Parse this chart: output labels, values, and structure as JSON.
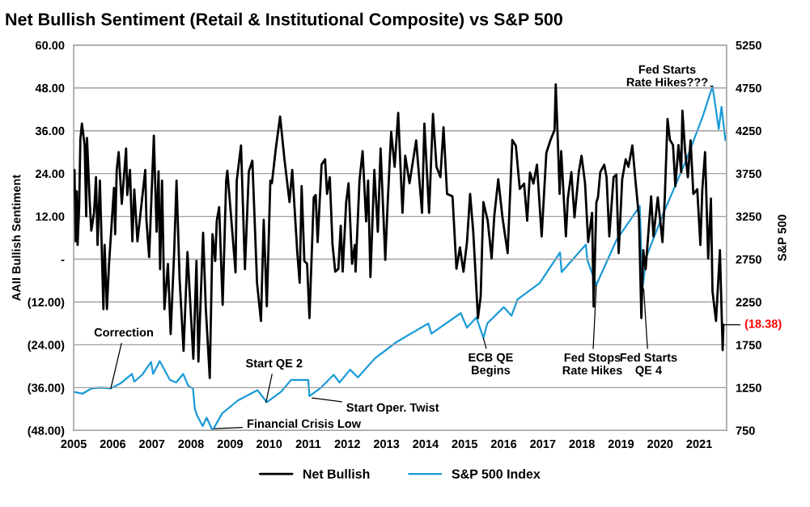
{
  "chart_data": {
    "type": "line",
    "title": "Net Bullish Sentiment (Retail & Institutional Composite) vs S&P 500",
    "ylabel": "AAII Bullish Sentiment",
    "y2label": "S&P 500",
    "xlim": [
      2005,
      2021.7
    ],
    "xticks": [
      2005,
      2006,
      2007,
      2008,
      2009,
      2010,
      2011,
      2012,
      2013,
      2014,
      2015,
      2016,
      2017,
      2018,
      2019,
      2020,
      2021
    ],
    "ylim": [
      -48,
      60
    ],
    "yticks": [
      {
        "value": 60,
        "label": "60.00"
      },
      {
        "value": 48,
        "label": "48.00"
      },
      {
        "value": 36,
        "label": "36.00"
      },
      {
        "value": 24,
        "label": "24.00"
      },
      {
        "value": 12,
        "label": "12.00"
      },
      {
        "value": 0,
        "label": "-"
      },
      {
        "value": -12,
        "label": "(12.00)"
      },
      {
        "value": -24,
        "label": "(24.00)"
      },
      {
        "value": -36,
        "label": "(36.00)"
      },
      {
        "value": -48,
        "label": "(48.00)"
      }
    ],
    "y2lim": [
      750,
      5250
    ],
    "y2ticks": [
      750,
      1250,
      1750,
      2250,
      2750,
      3250,
      3750,
      4250,
      4750,
      5250
    ],
    "grid": "y",
    "legend": "bottom",
    "series": [
      {
        "name": "Net Bullish",
        "color": "#000000",
        "x": [
          2005.0,
          2005.02,
          2005.05,
          2005.08,
          2005.1,
          2005.14,
          2005.17,
          2005.21,
          2005.28,
          2005.32,
          2005.34,
          2005.41,
          2005.45,
          2005.52,
          2005.57,
          2005.61,
          2005.67,
          2005.76,
          2005.79,
          2005.85,
          2005.9,
          2006.03,
          2006.06,
          2006.1,
          2006.15,
          2006.23,
          2006.34,
          2006.37,
          2006.44,
          2006.5,
          2006.55,
          2006.63,
          2006.83,
          2006.86,
          2006.93,
          2007.05,
          2007.12,
          2007.17,
          2007.21,
          2007.26,
          2007.32,
          2007.41,
          2007.48,
          2007.57,
          2007.63,
          2007.71,
          2007.81,
          2007.91,
          2008.06,
          2008.14,
          2008.19,
          2008.31,
          2008.38,
          2008.48,
          2008.55,
          2008.62,
          2008.66,
          2008.72,
          2008.81,
          2008.9,
          2008.93,
          2009.0,
          2009.14,
          2009.17,
          2009.28,
          2009.38,
          2009.48,
          2009.57,
          2009.69,
          2009.79,
          2009.86,
          2009.94,
          2010.03,
          2010.07,
          2010.17,
          2010.28,
          2010.39,
          2010.52,
          2010.59,
          2010.72,
          2010.78,
          2010.83,
          2010.9,
          2010.97,
          2011.03,
          2011.14,
          2011.19,
          2011.24,
          2011.34,
          2011.43,
          2011.48,
          2011.55,
          2011.62,
          2011.69,
          2011.77,
          2011.83,
          2011.88,
          2011.97,
          2012.03,
          2012.12,
          2012.19,
          2012.21,
          2012.31,
          2012.39,
          2012.48,
          2012.53,
          2012.59,
          2012.69,
          2012.78,
          2012.85,
          2012.97,
          2013.03,
          2013.12,
          2013.21,
          2013.3,
          2013.41,
          2013.48,
          2013.59,
          2013.76,
          2013.91,
          2013.97,
          2014.09,
          2014.19,
          2014.28,
          2014.38,
          2014.46,
          2014.55,
          2014.69,
          2014.79,
          2014.88,
          2014.97,
          2015.06,
          2015.14,
          2015.22,
          2015.34,
          2015.41,
          2015.48,
          2015.59,
          2015.69,
          2015.76,
          2015.86,
          2015.97,
          2016.1,
          2016.22,
          2016.31,
          2016.41,
          2016.52,
          2016.6,
          2016.67,
          2016.76,
          2016.85,
          2016.97,
          2017.09,
          2017.2,
          2017.3,
          2017.33,
          2017.37,
          2017.43,
          2017.47,
          2017.59,
          2017.64,
          2017.73,
          2017.81,
          2017.92,
          2017.99,
          2018.08,
          2018.16,
          2018.26,
          2018.3,
          2018.37,
          2018.41,
          2018.47,
          2018.57,
          2018.63,
          2018.7,
          2018.81,
          2018.88,
          2018.94,
          2019.03,
          2019.12,
          2019.19,
          2019.29,
          2019.37,
          2019.46,
          2019.52,
          2019.57,
          2019.63,
          2019.77,
          2019.83,
          2019.94,
          2020.06,
          2020.12,
          2020.19,
          2020.25,
          2020.33,
          2020.39,
          2020.47,
          2020.54,
          2020.57,
          2020.64,
          2020.71,
          2020.78,
          2020.85,
          2020.95,
          2021.03,
          2021.08,
          2021.15,
          2021.23,
          2021.3,
          2021.34,
          2021.43,
          2021.48,
          2021.53,
          2021.6,
          2021.62
        ],
        "values": [
          19,
          25,
          5,
          19,
          4,
          15,
          33.5,
          38,
          32,
          12,
          34,
          16,
          8,
          13,
          23,
          4,
          22,
          -14,
          4,
          -14,
          -2,
          20,
          7,
          25,
          30,
          15.5,
          31,
          18,
          25,
          5,
          19.5,
          5,
          25,
          11,
          0.6,
          34.6,
          7.7,
          24.6,
          -2.8,
          22,
          -14,
          -1.3,
          -21,
          2.1,
          22,
          -5.8,
          -25.7,
          2,
          -27.9,
          -0.5,
          -28.7,
          7.4,
          -14,
          -33.3,
          7,
          -0.5,
          10.8,
          14.6,
          -12.8,
          22,
          24.8,
          15.4,
          -3.7,
          22,
          31.9,
          -2.8,
          24.6,
          27.6,
          -6.7,
          -17.3,
          11,
          -13.2,
          22,
          21.3,
          31,
          40,
          28.1,
          16,
          25,
          1.7,
          -6.6,
          20.5,
          -0.5,
          -1.3,
          -16.5,
          17.3,
          18,
          4.8,
          26.5,
          28,
          18.3,
          23,
          4.1,
          -3.5,
          -2.7,
          9.4,
          -3.5,
          16,
          21.3,
          -1.3,
          4,
          -3.5,
          22,
          30.3,
          10.6,
          22,
          -5,
          25,
          7.7,
          31,
          -0.2,
          15.4,
          35.7,
          25.9,
          41,
          13,
          29,
          21.3,
          33.3,
          13,
          38,
          13,
          40.7,
          25.9,
          23,
          37,
          18.3,
          17.6,
          -2.7,
          3.3,
          -3.5,
          4.8,
          18.3,
          7.7,
          -16.5,
          -10.5,
          16,
          10.8,
          0.2,
          12.3,
          22.4,
          11.5,
          1.7,
          33.4,
          31.8,
          19.7,
          21.2,
          10.8,
          24.3,
          21.2,
          26.5,
          6.4,
          29.8,
          33.5,
          36.2,
          49,
          37.4,
          18.3,
          30.3,
          6.4,
          17,
          24.4,
          11.7,
          24.4,
          29,
          21.3,
          4.8,
          13,
          -13.3,
          16,
          17.3,
          24.4,
          26.5,
          23,
          6.4,
          23,
          23.7,
          1.7,
          22.4,
          28,
          25.9,
          31.9,
          22,
          11.7,
          -16.5,
          2.5,
          -2.8,
          17.6,
          6.4,
          17.3,
          4.8,
          17.3,
          39.3,
          33.5,
          32,
          20.5,
          32,
          24.4,
          41.6,
          30.3,
          23,
          33.3,
          18.3,
          19.6,
          4,
          19.6,
          30,
          0.2,
          17,
          -9,
          -17.3,
          -7.6,
          2.5,
          -25.5,
          -18.38
        ]
      },
      {
        "name": "S&P 500 Index",
        "color": "#1a9ad6",
        "axis": "y2",
        "x": [
          2005.0,
          2005.23,
          2005.45,
          2005.7,
          2005.95,
          2006.2,
          2006.49,
          2006.55,
          2006.75,
          2006.98,
          2007.03,
          2007.2,
          2007.46,
          2007.62,
          2007.8,
          2007.93,
          2008.05,
          2008.1,
          2008.15,
          2008.3,
          2008.4,
          2008.55,
          2008.8,
          2009.2,
          2009.7,
          2009.94,
          2010.3,
          2010.56,
          2011.0,
          2011.03,
          2011.3,
          2011.65,
          2011.8,
          2012.07,
          2012.27,
          2012.7,
          2013.25,
          2014.07,
          2014.15,
          2014.9,
          2015.06,
          2015.3,
          2015.48,
          2015.58,
          2016.0,
          2016.2,
          2016.35,
          2016.92,
          2017.44,
          2017.48,
          2018.1,
          2018.14,
          2018.37,
          2018.88,
          2019.48,
          2019.55,
          2019.65,
          2020.06,
          2020.68,
          2021.1,
          2021.34,
          2021.5,
          2021.57,
          2021.67
        ],
        "values": [
          1200,
          1180,
          1240,
          1250,
          1240,
          1300,
          1410,
          1320,
          1400,
          1550,
          1410,
          1560,
          1340,
          1310,
          1410,
          1270,
          1240,
          1000,
          930,
          800,
          900,
          750,
          950,
          1100,
          1220,
          1080,
          1200,
          1340,
          1340,
          1150,
          1240,
          1400,
          1310,
          1460,
          1370,
          1590,
          1780,
          2000,
          1880,
          2120,
          1950,
          2070,
          1830,
          2000,
          2190,
          2090,
          2280,
          2470,
          2830,
          2600,
          2920,
          2740,
          2450,
          2970,
          3370,
          2410,
          2780,
          3260,
          3920,
          4430,
          4770,
          4270,
          4530,
          4140
        ]
      }
    ],
    "annotations": [
      {
        "text": "Correction",
        "x": 2005.95,
        "y": -36.2
      },
      {
        "text": "Start QE 2",
        "x": 2009.92,
        "y": -40.1
      },
      {
        "text": "Financial Crisis Low",
        "x": 2008.6,
        "y": -47.5
      },
      {
        "text": "Start Oper. Twist",
        "x": 2011.1,
        "y": -38.9
      },
      {
        "text": "ECB QE\nBegins",
        "x": 2015.48,
        "y": -22.1
      },
      {
        "text": "Fed Stops\nRate Hikes",
        "x": 2018.37,
        "y": -7.2
      },
      {
        "text": "Fed Starts\nQE 4",
        "x": 2019.58,
        "y": -8.3
      },
      {
        "text": "Fed Starts\nRate Hikes???",
        "x": 2021.34,
        "y": 48.4
      },
      {
        "text": "(18.38)",
        "x": 2021.62,
        "y": -18.38
      }
    ]
  }
}
